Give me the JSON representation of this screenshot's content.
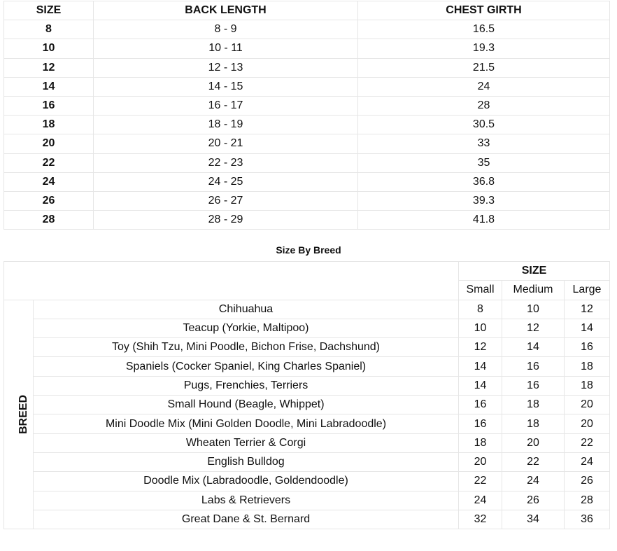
{
  "size_chart": {
    "headers": [
      "SIZE",
      "BACK LENGTH",
      "CHEST GIRTH"
    ],
    "rows": [
      [
        "8",
        "8 - 9",
        "16.5"
      ],
      [
        "10",
        "10 - 11",
        "19.3"
      ],
      [
        "12",
        "12 - 13",
        "21.5"
      ],
      [
        "14",
        "14 - 15",
        "24"
      ],
      [
        "16",
        "16 - 17",
        "28"
      ],
      [
        "18",
        "18 - 19",
        "30.5"
      ],
      [
        "20",
        "20 - 21",
        "33"
      ],
      [
        "22",
        "22 - 23",
        "35"
      ],
      [
        "24",
        "24 - 25",
        "36.8"
      ],
      [
        "26",
        "26 - 27",
        "39.3"
      ],
      [
        "28",
        "28 - 29",
        "41.8"
      ]
    ]
  },
  "breed_chart": {
    "title": "Size By Breed",
    "size_header": "SIZE",
    "breed_label": "BREED",
    "size_columns": [
      "Small",
      "Medium",
      "Large"
    ],
    "rows": [
      [
        "Chihuahua",
        "8",
        "10",
        "12"
      ],
      [
        "Teacup (Yorkie, Maltipoo)",
        "10",
        "12",
        "14"
      ],
      [
        "Toy (Shih Tzu, Mini Poodle, Bichon Frise, Dachshund)",
        "12",
        "14",
        "16"
      ],
      [
        "Spaniels (Cocker Spaniel, King Charles Spaniel)",
        "14",
        "16",
        "18"
      ],
      [
        "Pugs, Frenchies, Terriers",
        "14",
        "16",
        "18"
      ],
      [
        "Small Hound (Beagle, Whippet)",
        "16",
        "18",
        "20"
      ],
      [
        "Mini Doodle Mix (Mini Golden Doodle, Mini Labradoodle)",
        "16",
        "18",
        "20"
      ],
      [
        "Wheaten Terrier & Corgi",
        "18",
        "20",
        "22"
      ],
      [
        "English Bulldog",
        "20",
        "22",
        "24"
      ],
      [
        "Doodle Mix (Labradoodle, Goldendoodle)",
        "22",
        "24",
        "26"
      ],
      [
        "Labs & Retrievers",
        "24",
        "26",
        "28"
      ],
      [
        "Great Dane & St. Bernard",
        "32",
        "34",
        "36"
      ]
    ]
  }
}
